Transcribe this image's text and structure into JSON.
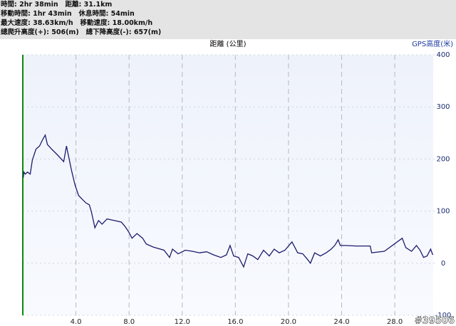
{
  "header": {
    "lines": [
      "時間: 2hr 38min   距離: 31.1km",
      "移動時間: 1hr 43min   休息時間: 54min",
      "最大速度: 38.63km/h   移動速度: 18.00km/h",
      "總爬升高度(+): 506(m)   總下降高度(-): 657(m)"
    ]
  },
  "chart_data": {
    "type": "line",
    "title": "距離 (公里)",
    "y_label": "GPS高度(米)",
    "watermark": "#39506",
    "color": "#1c1c6c",
    "axis_color": "#0a8a0a",
    "grid": true,
    "x": [
      0.03,
      0.08,
      0.19,
      0.35,
      0.56,
      0.72,
      0.99,
      1.26,
      1.53,
      1.69,
      1.85,
      2.17,
      2.6,
      3.08,
      3.29,
      3.45,
      3.67,
      3.93,
      4.2,
      4.47,
      4.74,
      5.01,
      5.17,
      5.43,
      5.7,
      5.97,
      6.34,
      6.88,
      7.41,
      7.68,
      7.95,
      8.22,
      8.59,
      9.02,
      9.29,
      9.82,
      10.63,
      11.05,
      11.27,
      11.69,
      12.23,
      12.76,
      13.3,
      13.84,
      14.37,
      14.91,
      15.33,
      15.6,
      15.87,
      16.25,
      16.62,
      16.94,
      17.32,
      17.69,
      18.12,
      18.55,
      18.92,
      19.3,
      19.73,
      20.26,
      20.69,
      21.07,
      21.44,
      21.65,
      21.97,
      22.4,
      22.83,
      23.21,
      23.48,
      23.74,
      23.9,
      24.28,
      25.08,
      26.15,
      26.26,
      27.22,
      28.56,
      28.83,
      29.26,
      29.63,
      29.9,
      30.17,
      30.43,
      30.7,
      30.86
    ],
    "values": [
      164,
      175,
      171,
      175,
      171,
      198,
      219,
      225,
      239,
      246,
      228,
      219,
      208,
      195,
      225,
      205,
      178,
      150,
      130,
      123,
      116,
      112,
      98,
      68,
      82,
      75,
      85,
      82,
      79,
      71,
      61,
      48,
      57,
      48,
      37,
      31,
      25,
      11,
      27,
      18,
      25,
      23,
      20,
      22,
      16,
      11,
      16,
      34,
      14,
      11,
      -7,
      18,
      14,
      7,
      25,
      14,
      27,
      20,
      25,
      41,
      20,
      18,
      7,
      0,
      20,
      14,
      20,
      27,
      34,
      45,
      34,
      34,
      33,
      33,
      20,
      23,
      48,
      30,
      23,
      34,
      25,
      11,
      14,
      27,
      16
    ],
    "xlim": [
      0,
      31
    ],
    "ylim": [
      -100,
      400
    ],
    "xticks": [
      {
        "value": 4,
        "label": "4.0"
      },
      {
        "value": 8,
        "label": "8.0"
      },
      {
        "value": 12,
        "label": "12.0"
      },
      {
        "value": 16,
        "label": "16.0"
      },
      {
        "value": 20,
        "label": "20.0"
      },
      {
        "value": 24,
        "label": "24.0"
      },
      {
        "value": 28,
        "label": "28.0"
      }
    ],
    "yticks": [
      400,
      300,
      200,
      100,
      0,
      -100
    ]
  }
}
